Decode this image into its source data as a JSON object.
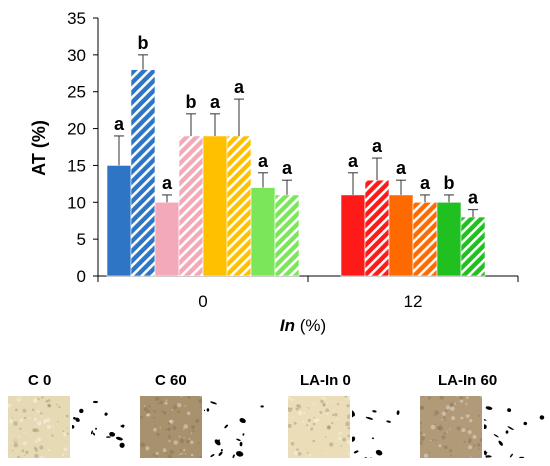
{
  "chart_data": {
    "type": "bar",
    "ylabel": "AT (%)",
    "xlabel_italic": "In",
    "xlabel_rest": " (%)",
    "categories": [
      "0",
      "12"
    ],
    "ylim": [
      0,
      35
    ],
    "yticks": [
      0,
      5,
      10,
      15,
      20,
      25,
      30,
      35
    ],
    "grid": false,
    "groups": [
      {
        "category": "0",
        "bars": [
          {
            "value": 15,
            "error": 4,
            "letter": "a",
            "color": "#2E75C5",
            "hatched": false
          },
          {
            "value": 28,
            "error": 2,
            "letter": "b",
            "color": "#2E75C5",
            "hatched": true
          },
          {
            "value": 10,
            "error": 1,
            "letter": "a",
            "color": "#F4A9B8",
            "hatched": false
          },
          {
            "value": 19,
            "error": 3,
            "letter": "b",
            "color": "#F4A9B8",
            "hatched": true
          },
          {
            "value": 19,
            "error": 3,
            "letter": "a",
            "color": "#FFC000",
            "hatched": false
          },
          {
            "value": 19,
            "error": 5,
            "letter": "a",
            "color": "#FFC000",
            "hatched": true
          },
          {
            "value": 12,
            "error": 2,
            "letter": "a",
            "color": "#7CE65A",
            "hatched": false
          },
          {
            "value": 11,
            "error": 2,
            "letter": "a",
            "color": "#7CE65A",
            "hatched": true
          }
        ]
      },
      {
        "category": "12",
        "bars": [
          {
            "value": 11,
            "error": 3,
            "letter": "a",
            "color": "#FF1A1A",
            "hatched": false
          },
          {
            "value": 13,
            "error": 3,
            "letter": "a",
            "color": "#FF1A1A",
            "hatched": true
          },
          {
            "value": 11,
            "error": 2,
            "letter": "a",
            "color": "#FF6A00",
            "hatched": false
          },
          {
            "value": 10,
            "error": 1,
            "letter": "a",
            "color": "#FF6A00",
            "hatched": true
          },
          {
            "value": 10,
            "error": 1,
            "letter": "b",
            "color": "#1FC01F",
            "hatched": false
          },
          {
            "value": 8,
            "error": 1,
            "letter": "a",
            "color": "#1FC01F",
            "hatched": true
          }
        ]
      }
    ]
  },
  "panels": [
    {
      "label": "C 0",
      "crumb_color": "#E6DAB4"
    },
    {
      "label": "C 60",
      "crumb_color": "#A8926E"
    },
    {
      "label": "LA-In 0",
      "crumb_color": "#EADDB8"
    },
    {
      "label": "LA-In 60",
      "crumb_color": "#B09A78"
    }
  ]
}
